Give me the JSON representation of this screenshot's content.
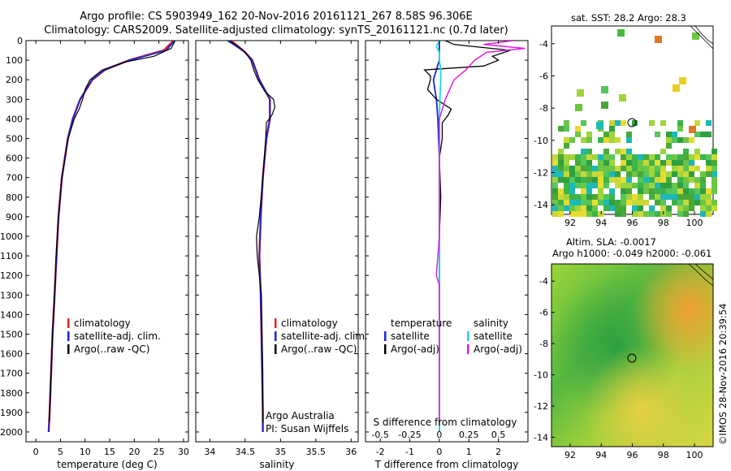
{
  "header": {
    "line1": "Argo profile: CS 5903949_162 20-Nov-2016 20161121_267 8.58S 96.306E",
    "line2": "Climatology: CARS2009. Satellite-adjusted climatology: synTS_20161121.nc (0.7d later)"
  },
  "watermark": "©IMOS 28-Nov-2016 20:39:54",
  "colors": {
    "climatology": "#e0201c",
    "satellite": "#1a25d8",
    "argo": "#000000",
    "sat_sal": "#19d9e6",
    "argo_sal": "#e21ce0"
  },
  "chart_data": [
    {
      "type": "line",
      "xlabel": "temperature (deg C)",
      "ylim": [
        2050,
        0
      ],
      "xlim": [
        -2,
        31
      ],
      "xticks": [
        "0",
        "5",
        "10",
        "15",
        "20",
        "25",
        "30"
      ],
      "yticks": [
        "0",
        "100",
        "200",
        "300",
        "400",
        "500",
        "600",
        "700",
        "800",
        "900",
        "1000",
        "1100",
        "1200",
        "1300",
        "1400",
        "1500",
        "1600",
        "1700",
        "1800",
        "1900",
        "2000"
      ],
      "legend": [
        "climatology",
        "satellite-adj. clim.",
        "Argo(..raw -QC)"
      ],
      "series": [
        {
          "name": "climatology",
          "depth": [
            0,
            50,
            100,
            150,
            200,
            300,
            400,
            500,
            700,
            900,
            1100,
            1300,
            1500,
            1700,
            1900,
            2000
          ],
          "values": [
            28,
            26,
            19,
            14,
            11.5,
            9,
            7.5,
            6.5,
            5.3,
            4.6,
            4.2,
            3.8,
            3.4,
            3.1,
            2.8,
            2.6
          ]
        },
        {
          "name": "satellite-adj. clim.",
          "depth": [
            0,
            50,
            100,
            150,
            200,
            300,
            400,
            500,
            700,
            900,
            1100,
            1300,
            1500,
            1700,
            1900,
            2000
          ],
          "values": [
            28.2,
            26.5,
            19,
            14,
            11.4,
            9,
            7.5,
            6.5,
            5.3,
            4.6,
            4.2,
            3.8,
            3.4,
            3.1,
            2.8,
            2.6
          ]
        },
        {
          "name": "Argo(..raw -QC)",
          "depth": [
            0,
            40,
            80,
            110,
            150,
            200,
            250,
            300,
            350,
            400,
            500,
            700,
            900,
            1100,
            1300,
            1500,
            1700,
            1900,
            1950
          ],
          "values": [
            28.3,
            27.5,
            24,
            18,
            13.5,
            11,
            10,
            9.5,
            8.8,
            7.8,
            6.6,
            5.3,
            4.6,
            4.1,
            3.8,
            3.4,
            3.1,
            2.8,
            2.7
          ]
        }
      ]
    },
    {
      "type": "line",
      "xlabel": "salinity",
      "ylim": [
        2050,
        0
      ],
      "xlim": [
        33.8,
        36.1
      ],
      "xticks": [
        "34",
        "34.5",
        "35",
        "35.5",
        "36"
      ],
      "legend": [
        "climatology",
        "satellite-adj. clim.",
        "Argo(..raw -QC)"
      ],
      "series": [
        {
          "name": "climatology",
          "depth": [
            0,
            30,
            60,
            100,
            150,
            200,
            300,
            400,
            500,
            700,
            900,
            1100,
            1300,
            1500,
            1700,
            1900,
            2000
          ],
          "values": [
            34.3,
            34.4,
            34.5,
            34.6,
            34.65,
            34.7,
            34.85,
            34.85,
            34.8,
            34.75,
            34.72,
            34.7,
            34.72,
            34.73,
            34.74,
            34.75,
            34.75
          ]
        },
        {
          "name": "satellite-adj. clim.",
          "depth": [
            0,
            30,
            60,
            100,
            150,
            200,
            300,
            400,
            500,
            700,
            900,
            1100,
            1300,
            1500,
            1700,
            1900,
            2000
          ],
          "values": [
            34.25,
            34.38,
            34.5,
            34.6,
            34.65,
            34.7,
            34.85,
            34.85,
            34.8,
            34.75,
            34.72,
            34.7,
            34.72,
            34.73,
            34.74,
            34.75,
            34.75
          ]
        },
        {
          "name": "Argo(..raw -QC)",
          "depth": [
            0,
            30,
            60,
            100,
            150,
            200,
            260,
            300,
            340,
            380,
            420,
            500,
            700,
            900,
            1000,
            1100,
            1200,
            1300,
            1500,
            1700,
            1900,
            1950
          ],
          "values": [
            34.28,
            34.4,
            34.5,
            34.58,
            34.62,
            34.68,
            34.78,
            34.9,
            34.92,
            34.88,
            34.8,
            34.79,
            34.75,
            34.7,
            34.66,
            34.67,
            34.7,
            34.73,
            34.74,
            34.75,
            34.75,
            34.75
          ]
        }
      ],
      "annotations": [
        "Argo Australia",
        "PI: Susan Wijffels"
      ]
    },
    {
      "type": "line",
      "xlabel": "T difference from climatology",
      "xlabel2": "S difference from climatology",
      "ylim": [
        2050,
        0
      ],
      "xlim": [
        -2.5,
        3
      ],
      "xticks": [
        "-2",
        "-1",
        "0",
        "1",
        "2"
      ],
      "xticks2": [
        "-0.5",
        "-0.25",
        "0",
        "0.25",
        "0.5"
      ],
      "legend": [
        "temperature",
        "satellite",
        "Argo(-adj)",
        "salinity",
        "satellite",
        "Argo(-adj)"
      ],
      "series": [
        {
          "name": "temperature satellite",
          "depth": [
            0,
            100,
            200,
            300,
            400,
            600,
            800,
            1000,
            1200,
            1500,
            1800,
            2000
          ],
          "values": [
            0,
            0,
            -0.2,
            -0.1,
            -0.05,
            0,
            0,
            0,
            0,
            0,
            0,
            0
          ]
        },
        {
          "name": "temperature Argo(-adj)",
          "depth": [
            0,
            20,
            50,
            80,
            100,
            130,
            150,
            180,
            200,
            250,
            300,
            350,
            380,
            420,
            500,
            600,
            800,
            1000,
            1200,
            1400,
            1600,
            1800,
            1950
          ],
          "values": [
            0.2,
            0.5,
            2.4,
            1.8,
            2,
            1.5,
            -0.5,
            -0.3,
            -0.3,
            -0.4,
            -0.1,
            0.4,
            0.3,
            0.1,
            0.1,
            0,
            0.05,
            0,
            0,
            0,
            0,
            0,
            0
          ]
        },
        {
          "name": "salinity satellite",
          "depth": [
            0,
            30,
            60,
            100,
            150,
            200,
            300,
            400,
            600,
            800,
            1000,
            1200,
            1500,
            1800,
            2000
          ],
          "values": [
            0,
            -0.1,
            0,
            0,
            0.05,
            0.05,
            0.02,
            0,
            0,
            0,
            0,
            0,
            0,
            0,
            0
          ]
        },
        {
          "name": "salinity Argo(-adj)",
          "depth": [
            0,
            20,
            40,
            60,
            80,
            100,
            150,
            200,
            300,
            400,
            500,
            600,
            800,
            1000,
            1200,
            1250,
            1400,
            1600,
            1800,
            1950
          ],
          "values": [
            2.5,
            1.5,
            2.9,
            1.6,
            1.4,
            1.2,
            0.9,
            0.5,
            0.2,
            0,
            0,
            0,
            0,
            0,
            -0.1,
            0,
            0,
            0,
            0,
            0
          ]
        }
      ]
    },
    {
      "type": "heatmap",
      "title": "sat. SST: 28.2 Argo: 28.3",
      "xticks": [
        "92",
        "94",
        "96",
        "98",
        "100"
      ],
      "yticks": [
        "-4",
        "-6",
        "-8",
        "-10",
        "-12",
        "-14"
      ]
    },
    {
      "type": "heatmap",
      "title": "Altim. SLA: -0.0017",
      "subtitle": "Argo h1000: -0.049 h2000: -0.061",
      "xticks": [
        "92",
        "94",
        "96",
        "98",
        "100"
      ],
      "yticks": [
        "-4",
        "-6",
        "-8",
        "-10",
        "-12",
        "-14"
      ]
    }
  ]
}
